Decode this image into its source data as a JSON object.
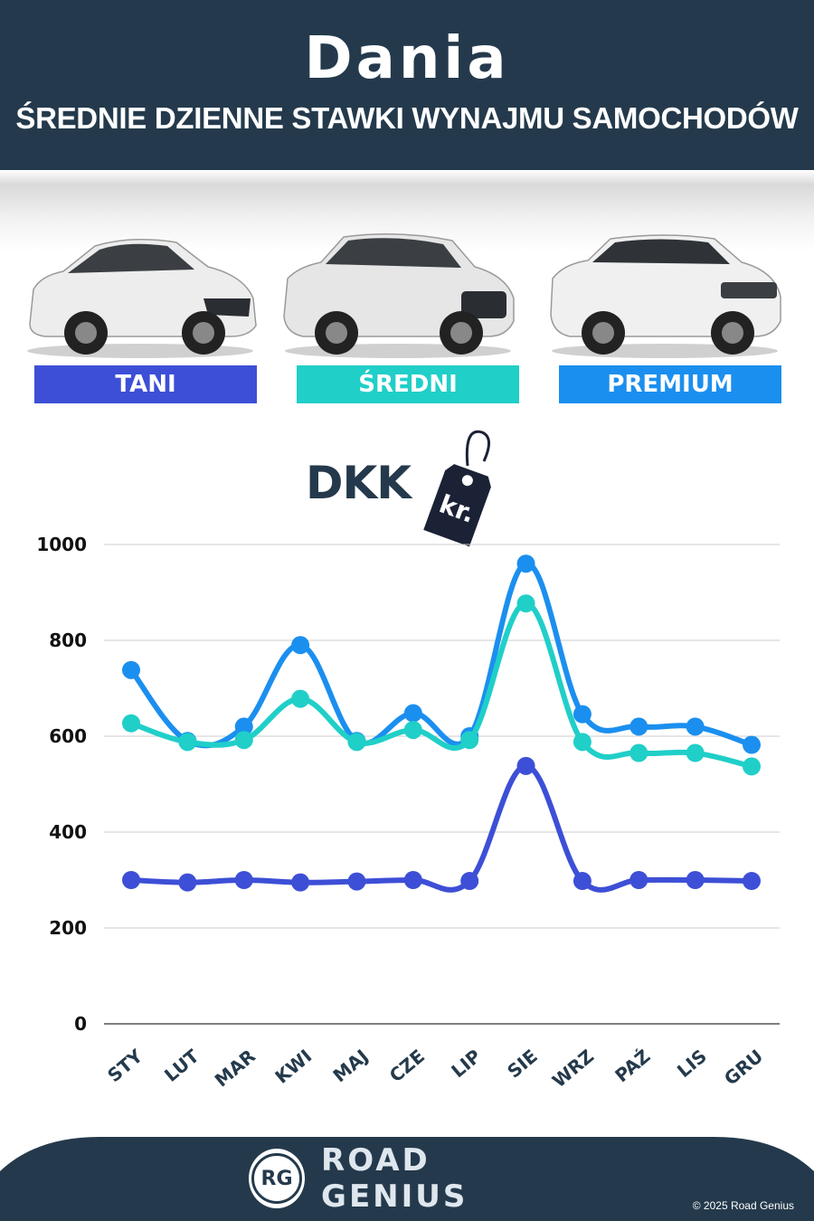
{
  "header": {
    "title": "Dania",
    "subtitle": "ŚREDNIE DZIENNE STAWKI WYNAJMU SAMOCHODÓW"
  },
  "categories": [
    {
      "label": "TANI",
      "color": "#3d4fd6"
    },
    {
      "label": "ŚREDNI",
      "color": "#20cfc8"
    },
    {
      "label": "PREMIUM",
      "color": "#1b8fef"
    }
  ],
  "currency": {
    "label": "DKK",
    "tag_text": "kr."
  },
  "chart_data": {
    "type": "line",
    "categories": [
      "STY",
      "LUT",
      "MAR",
      "KWI",
      "MAJ",
      "CZE",
      "LIP",
      "SIE",
      "WRZ",
      "PAŹ",
      "LIS",
      "GRU"
    ],
    "ylim": [
      0,
      1000
    ],
    "yticks": [
      0,
      200,
      400,
      600,
      800,
      1000
    ],
    "grid": true,
    "series": [
      {
        "color": "#1b8fef",
        "values": [
          738,
          590,
          620,
          790,
          590,
          648,
          600,
          960,
          646,
          620,
          620,
          582
        ]
      },
      {
        "color": "#20cfc8",
        "values": [
          627,
          588,
          592,
          678,
          588,
          613,
          592,
          877,
          588,
          565,
          565,
          537
        ]
      },
      {
        "color": "#3d4fd6",
        "values": [
          300,
          295,
          300,
          295,
          297,
          300,
          298,
          538,
          298,
          300,
          300,
          298
        ]
      }
    ]
  },
  "footer": {
    "logo_text": "RG",
    "brand": "ROAD GENIUS",
    "copyright": "© 2025 Road Genius"
  }
}
